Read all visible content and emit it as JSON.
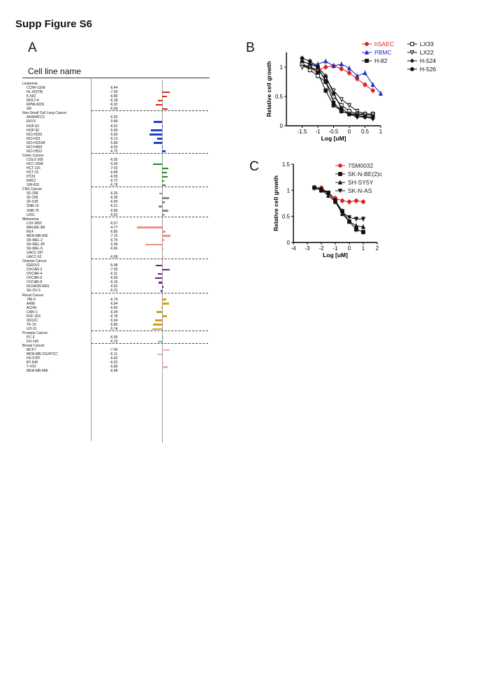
{
  "figure_title": "Supp Figure S6",
  "panels": {
    "A": {
      "letter": "A",
      "header": "Cell line name",
      "groups": [
        {
          "name": "Leukemia",
          "color": "#d9261c",
          "lines": [
            {
              "name": "CCRF-CEM",
              "value": "-6.44",
              "bar": 0.0
            },
            {
              "name": "HL-60(TB)",
              "value": "-7.09",
              "bar": 0.55
            },
            {
              "name": "K-562",
              "value": "-6.89",
              "bar": 0.35
            },
            {
              "name": "MOLT-4",
              "value": "-6.18",
              "bar": -0.28
            },
            {
              "name": "RPMI-8226",
              "value": "-6.02",
              "bar": -0.45
            },
            {
              "name": "SR",
              "value": "-6.94",
              "bar": 0.4
            }
          ]
        },
        {
          "name": "Non-Small Cell Lung Cancer",
          "color": "#1f3fc9",
          "lines": [
            {
              "name": "A549/ATCC",
              "value": "-6.50",
              "bar": 0.0
            },
            {
              "name": "EKVX",
              "value": "-5.89",
              "bar": -0.6
            },
            {
              "name": "HOP-62",
              "value": "-6.52",
              "bar": 0.03
            },
            {
              "name": "HOP-92",
              "value": "-5.69",
              "bar": -0.8
            },
            {
              "name": "NCI-H226",
              "value": "-5.60",
              "bar": -0.9
            },
            {
              "name": "NCI-H23",
              "value": "-6.13",
              "bar": -0.36
            },
            {
              "name": "NCI-H322M",
              "value": "-5.89",
              "bar": -0.6
            },
            {
              "name": "NCI-H460",
              "value": "-6.53",
              "bar": 0.04
            },
            {
              "name": "NCI-H522",
              "value": "-6.75",
              "bar": 0.26
            }
          ]
        },
        {
          "name": "Colon Cancer",
          "color": "#1e8a25",
          "lines": [
            {
              "name": "COLO 205",
              "value": "-6.55",
              "bar": 0.0
            },
            {
              "name": "HCC-2998",
              "value": "-5.90",
              "bar": -0.65
            },
            {
              "name": "HCT-116",
              "value": "-7.02",
              "bar": 0.47
            },
            {
              "name": "HCT-15",
              "value": "-6.89",
              "bar": 0.34
            },
            {
              "name": "HT29",
              "value": "-6.95",
              "bar": 0.4
            },
            {
              "name": "KM12",
              "value": "-6.72",
              "bar": 0.17
            },
            {
              "name": "SW-620",
              "value": "-6.78",
              "bar": 0.23
            }
          ]
        },
        {
          "name": "CNS Cancer",
          "color": "#8a8a8a",
          "lines": [
            {
              "name": "SF-268",
              "value": "-6.26",
              "bar": -0.2
            },
            {
              "name": "SF-295",
              "value": "-6.95",
              "bar": 0.49
            },
            {
              "name": "SF-539",
              "value": "-6.65",
              "bar": 0.19
            },
            {
              "name": "SNB-19",
              "value": "-6.21",
              "bar": -0.25
            },
            {
              "name": "SNB-75",
              "value": "-6.89",
              "bar": 0.43
            },
            {
              "name": "U251",
              "value": "-6.62",
              "bar": 0.16
            }
          ]
        },
        {
          "name": "Melanoma",
          "color": "#ef8f85",
          "lines": [
            {
              "name": "LOX IMVI",
              "value": "-6.57",
              "bar": 0.0
            },
            {
              "name": "MALME-3M",
              "value": "-4.77",
              "bar": -1.8
            },
            {
              "name": "M14",
              "value": "-6.80",
              "bar": 0.23
            },
            {
              "name": "MDA-MB-435",
              "value": "-7.15",
              "bar": 0.58
            },
            {
              "name": "SK-MEL-2",
              "value": "-6.74",
              "bar": 0.17
            },
            {
              "name": "SK-MEL-28",
              "value": "-5.36",
              "bar": -1.21
            },
            {
              "name": "SK-MEL-5",
              "value": "-6.66",
              "bar": 0.09
            },
            {
              "name": "UACC-257",
              "value": "",
              "bar": 0.0
            },
            {
              "name": "UACC-62",
              "value": "-6.68",
              "bar": 0.11
            }
          ]
        },
        {
          "name": "Ovarian Cancer",
          "color": "#6b1f8c",
          "lines": [
            {
              "name": "IGROV1",
              "value": "-5.98",
              "bar": -0.45
            },
            {
              "name": "OVCAR-3",
              "value": "-7.00",
              "bar": 0.57
            },
            {
              "name": "OVCAR-4",
              "value": "-6.11",
              "bar": -0.32
            },
            {
              "name": "OVCAR-5",
              "value": "-5.95",
              "bar": -0.48
            },
            {
              "name": "OVCAR-8",
              "value": "-6.16",
              "bar": -0.27
            },
            {
              "name": "NCI/ADR-RES",
              "value": "-6.52",
              "bar": 0.09
            },
            {
              "name": "SK-OV-3",
              "value": "-6.31",
              "bar": -0.12
            }
          ]
        },
        {
          "name": "Renal Cancer",
          "color": "#d4a017",
          "lines": [
            {
              "name": "786-0",
              "value": "-6.74",
              "bar": 0.3
            },
            {
              "name": "A498",
              "value": "-6.94",
              "bar": 0.5
            },
            {
              "name": "ACHN",
              "value": "-6.40",
              "bar": -0.04
            },
            {
              "name": "CAKI-1",
              "value": "-6.04",
              "bar": -0.4
            },
            {
              "name": "RXF 393",
              "value": "-6.78",
              "bar": 0.34
            },
            {
              "name": "SN12C",
              "value": "-5.94",
              "bar": -0.5
            },
            {
              "name": "TK-10",
              "value": "-5.80",
              "bar": -0.64
            },
            {
              "name": "UO-31",
              "value": "-5.74",
              "bar": -0.7
            }
          ]
        },
        {
          "name": "Prostate Cancer",
          "color": "#2fd0d0",
          "lines": [
            {
              "name": "PC-3",
              "value": "-6.55",
              "bar": 0.1
            },
            {
              "name": "DU-145",
              "value": "-6.15",
              "bar": -0.3
            }
          ]
        },
        {
          "name": "Breast Cancer",
          "color": "#f2a5c0",
          "lines": [
            {
              "name": "MCF7",
              "value": "-7.00",
              "bar": 0.56
            },
            {
              "name": "MDA-MB-231/ATCC",
              "value": "-6.11",
              "bar": -0.33
            },
            {
              "name": "HS 578T",
              "value": "-6.42",
              "bar": -0.02
            },
            {
              "name": "BT-549",
              "value": "-6.53",
              "bar": 0.09
            },
            {
              "name": "T-47D",
              "value": "-6.86",
              "bar": 0.42
            },
            {
              "name": "MDA-MB-468",
              "value": "-6.48",
              "bar": 0.04
            }
          ]
        }
      ]
    },
    "B": {
      "letter": "B"
    },
    "C": {
      "letter": "C"
    }
  },
  "chart_data": [
    {
      "panel": "B",
      "type": "line",
      "xlabel": "Log [uM]",
      "ylabel": "Relative cell growth",
      "xlim": [
        -2,
        1
      ],
      "ylim": [
        0,
        1.25
      ],
      "xticks": [
        -1.5,
        -1,
        -0.5,
        0,
        0.5,
        1
      ],
      "yticks": [
        0,
        0.5,
        1
      ],
      "legend_placement": "top-right",
      "series": [
        {
          "name": "hSAEC",
          "color": "#e02020",
          "marker": "circle-filled",
          "x": [
            -1.5,
            -1.25,
            -1,
            -0.75,
            -0.5,
            -0.25,
            0,
            0.25,
            0.5,
            0.75
          ],
          "y": [
            1.05,
            0.98,
            0.95,
            1.0,
            1.02,
            0.97,
            0.9,
            0.8,
            0.7,
            0.6
          ]
        },
        {
          "name": "PBMC",
          "color": "#2030c0",
          "marker": "triangle-filled",
          "x": [
            -1.5,
            -1.25,
            -1,
            -0.75,
            -0.5,
            -0.25,
            0,
            0.25,
            0.5,
            0.75,
            1
          ],
          "y": [
            1.1,
            1.05,
            1.05,
            1.1,
            1.02,
            1.05,
            0.98,
            0.85,
            0.9,
            0.7,
            0.55
          ]
        },
        {
          "name": "H-82",
          "color": "#111111",
          "marker": "square-filled",
          "x": [
            -1.5,
            -1.25,
            -1,
            -0.75,
            -0.5,
            -0.25,
            0,
            0.25,
            0.5,
            0.75
          ],
          "y": [
            1.05,
            1.0,
            0.9,
            0.6,
            0.35,
            0.25,
            0.2,
            0.2,
            0.18,
            0.18
          ]
        },
        {
          "name": "LX33",
          "color": "#111111",
          "marker": "square-open",
          "x": [
            -1.5,
            -1.25,
            -1,
            -0.75,
            -0.5,
            -0.25,
            0,
            0.25,
            0.5,
            0.75
          ],
          "y": [
            1.05,
            0.95,
            0.85,
            0.75,
            0.5,
            0.35,
            0.25,
            0.2,
            0.2,
            0.2
          ]
        },
        {
          "name": "LX22",
          "color": "#111111",
          "marker": "triangle-down-open",
          "x": [
            -1.5,
            -1.25,
            -1,
            -0.75,
            -0.5,
            -0.25,
            0,
            0.25,
            0.5,
            0.75
          ],
          "y": [
            1.0,
            1.0,
            0.95,
            0.8,
            0.6,
            0.45,
            0.35,
            0.25,
            0.2,
            0.2
          ]
        },
        {
          "name": "H-524",
          "color": "#111111",
          "marker": "diamond-filled",
          "x": [
            -1.5,
            -1.25,
            -1,
            -0.75,
            -0.5,
            -0.25,
            0,
            0.25,
            0.5,
            0.75
          ],
          "y": [
            1.1,
            1.05,
            1.0,
            0.85,
            0.55,
            0.3,
            0.2,
            0.15,
            0.15,
            0.12
          ]
        },
        {
          "name": "H-526",
          "color": "#111111",
          "marker": "circle-filled",
          "x": [
            -1.5,
            -1.25,
            -1,
            -0.75,
            -0.5,
            -0.25,
            0,
            0.25,
            0.5,
            0.75
          ],
          "y": [
            1.15,
            1.1,
            1.0,
            0.75,
            0.4,
            0.25,
            0.2,
            0.18,
            0.15,
            0.15
          ]
        }
      ]
    },
    {
      "panel": "C",
      "type": "line",
      "xlabel": "Log [uM]",
      "ylabel": "Relative cell growth",
      "xlim": [
        -4,
        2
      ],
      "ylim": [
        0,
        1.5
      ],
      "xticks": [
        -4,
        -3,
        -2,
        -1,
        0,
        1,
        2
      ],
      "yticks": [
        0,
        0.5,
        1,
        1.5
      ],
      "legend_placement": "top-right",
      "series": [
        {
          "name": "7SM0032",
          "color": "#e02020",
          "marker": "circle-filled",
          "x": [
            -2.5,
            -2,
            -1.5,
            -1,
            -0.5,
            0,
            0.5,
            1
          ],
          "y": [
            1.05,
            1.05,
            0.95,
            0.85,
            0.8,
            0.78,
            0.8,
            0.78
          ]
        },
        {
          "name": "SK-N-BE(2)c",
          "color": "#111111",
          "marker": "square-filled",
          "x": [
            -2.5,
            -2,
            -1.5,
            -1,
            -0.5,
            0,
            0.5,
            1
          ],
          "y": [
            1.05,
            1.0,
            0.95,
            0.8,
            0.6,
            0.4,
            0.25,
            0.2
          ]
        },
        {
          "name": "SH-SY5Y",
          "color": "#111111",
          "marker": "triangle-filled",
          "x": [
            -2.5,
            -2,
            -1.5,
            -1,
            -0.5,
            0,
            0.5,
            1
          ],
          "y": [
            1.05,
            1.0,
            0.9,
            0.78,
            0.55,
            0.4,
            0.32,
            0.3
          ]
        },
        {
          "name": "SK-N-AS",
          "color": "#111111",
          "marker": "triangle-down-filled",
          "x": [
            -2.5,
            -2,
            -1.5,
            -1,
            -0.5,
            0,
            0.5,
            1
          ],
          "y": [
            1.05,
            1.02,
            0.95,
            0.8,
            0.58,
            0.48,
            0.45,
            0.45
          ]
        }
      ]
    }
  ]
}
